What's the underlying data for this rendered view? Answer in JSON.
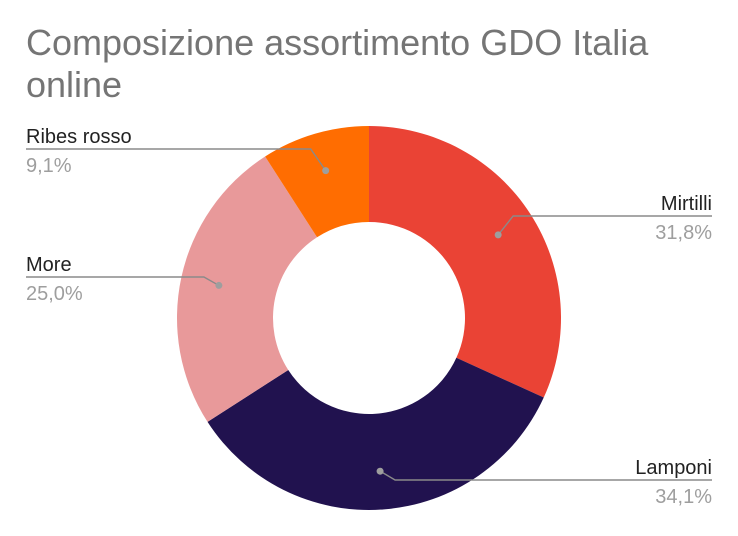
{
  "chart_data": {
    "type": "pie",
    "donut": true,
    "title": "Composizione assortimento GDO Italia online",
    "slices": [
      {
        "name": "Mirtilli",
        "value": 31.8,
        "label": "31,8%",
        "color": "#ea4335"
      },
      {
        "name": "Lamponi",
        "value": 34.1,
        "label": "34,1%",
        "color": "#21124f"
      },
      {
        "name": "More",
        "value": 25.0,
        "label": "25,0%",
        "color": "#e8999a"
      },
      {
        "name": "Ribes rosso",
        "value": 9.1,
        "label": "9,1%",
        "color": "#ff6d01"
      }
    ],
    "legend": "none"
  }
}
